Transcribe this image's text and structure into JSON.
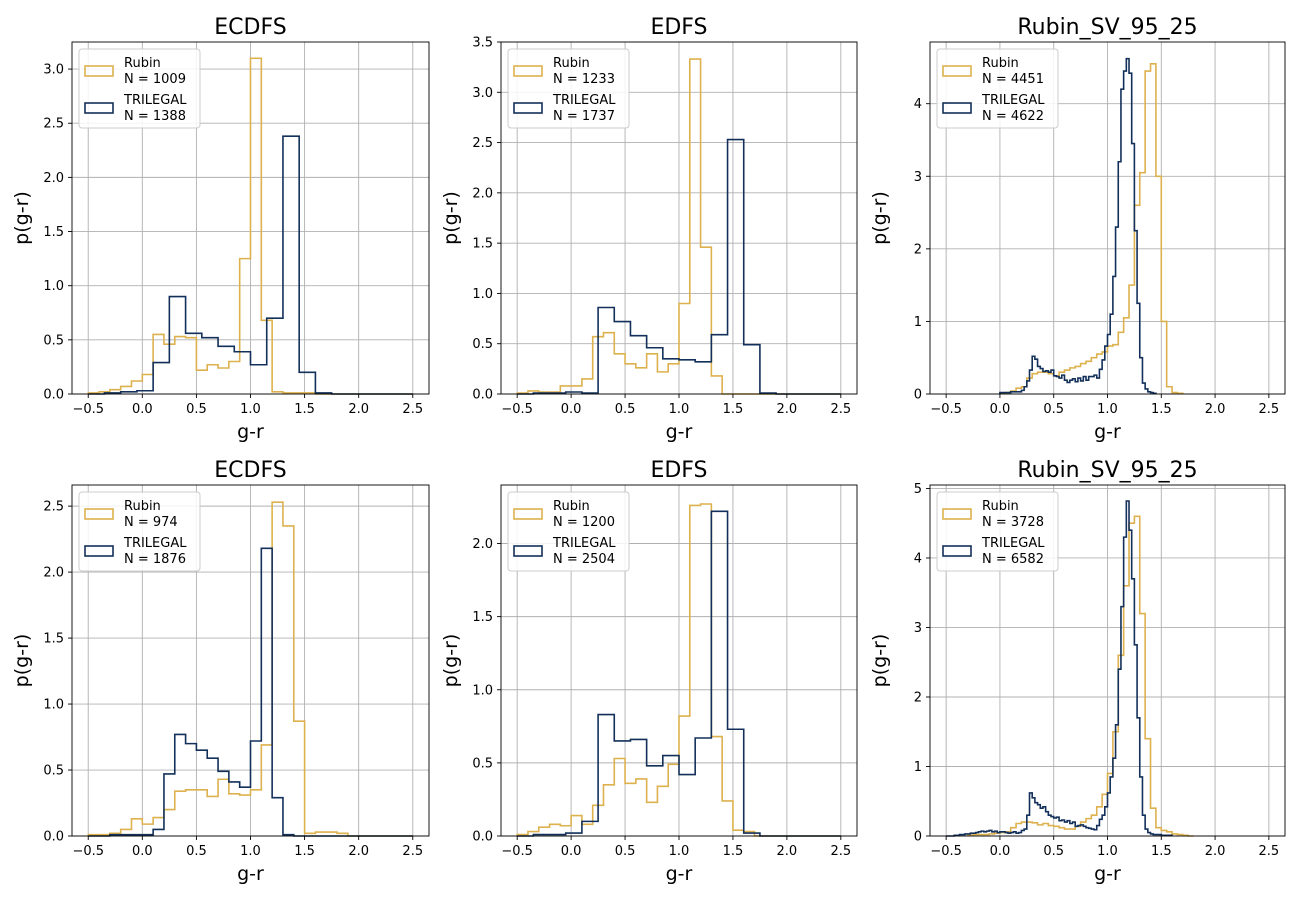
{
  "colors": {
    "rubin": "#DDB14E",
    "trilegal": "#13305A",
    "grid": "#b0b0b0",
    "axis": "#000000"
  },
  "chart_data": [
    {
      "type": "histogram-step",
      "title": "ECDFS",
      "xlabel": "g-r",
      "ylabel": "p(g-r)",
      "xlim": [
        -0.65,
        2.65
      ],
      "ylim": [
        0,
        3.25
      ],
      "xticks": [
        -0.5,
        0.0,
        0.5,
        1.0,
        1.5,
        2.0,
        2.5
      ],
      "xtick_labels": [
        "−0.5",
        "0.0",
        "0.5",
        "1.0",
        "1.5",
        "2.0",
        "2.5"
      ],
      "yticks": [
        0,
        0.5,
        1.0,
        1.5,
        2.0,
        2.5,
        3.0
      ],
      "ytick_labels": [
        "0.0",
        "0.5",
        "1.0",
        "1.5",
        "2.0",
        "2.5",
        "3.0"
      ],
      "legend": [
        {
          "name": "Rubin",
          "n_label": "N = 1009"
        },
        {
          "name": "TRILEGAL",
          "n_label": "N = 1388"
        }
      ],
      "series": [
        {
          "name": "Rubin",
          "edges_start": -0.5,
          "bin_width": 0.1,
          "values": [
            0.01,
            0.02,
            0.04,
            0.07,
            0.12,
            0.18,
            0.55,
            0.46,
            0.53,
            0.52,
            0.22,
            0.27,
            0.24,
            0.3,
            1.25,
            3.1,
            0.68,
            0.02,
            0.01,
            0.01,
            0.01,
            0,
            0,
            0,
            0,
            0,
            0,
            0,
            0,
            0
          ]
        },
        {
          "name": "TRILEGAL",
          "edges_start": -0.5,
          "bin_width": 0.15,
          "values": [
            0.0,
            0.01,
            0.02,
            0.03,
            0.29,
            0.9,
            0.56,
            0.52,
            0.44,
            0.39,
            0.27,
            0.7,
            2.38,
            0.2,
            0.01,
            0.0,
            0.0,
            0.0,
            0.0,
            0.0
          ]
        }
      ]
    },
    {
      "type": "histogram-step",
      "title": "EDFS",
      "xlabel": "g-r",
      "ylabel": "p(g-r)",
      "xlim": [
        -0.65,
        2.65
      ],
      "ylim": [
        0,
        3.5
      ],
      "xticks": [
        -0.5,
        0.0,
        0.5,
        1.0,
        1.5,
        2.0,
        2.5
      ],
      "xtick_labels": [
        "−0.5",
        "0.0",
        "0.5",
        "1.0",
        "1.5",
        "2.0",
        "2.5"
      ],
      "yticks": [
        0,
        0.5,
        1.0,
        1.5,
        2.0,
        2.5,
        3.0,
        3.5
      ],
      "ytick_labels": [
        "0.0",
        "0.5",
        "1.0",
        "1.5",
        "2.0",
        "2.5",
        "3.0",
        "3.5"
      ],
      "legend": [
        {
          "name": "Rubin",
          "n_label": "N = 1233"
        },
        {
          "name": "TRILEGAL",
          "n_label": "N = 1737"
        }
      ],
      "series": [
        {
          "name": "Rubin",
          "edges_start": -0.5,
          "bin_width": 0.1,
          "values": [
            0.01,
            0.03,
            0.02,
            0.02,
            0.08,
            0.08,
            0.15,
            0.57,
            0.61,
            0.4,
            0.3,
            0.26,
            0.4,
            0.22,
            0.3,
            0.9,
            3.33,
            1.46,
            0.18,
            0.0,
            0,
            0,
            0,
            0,
            0,
            0,
            0,
            0,
            0,
            0
          ]
        },
        {
          "name": "TRILEGAL",
          "edges_start": -0.5,
          "bin_width": 0.15,
          "values": [
            0.0,
            0.01,
            0.01,
            0.02,
            0.01,
            0.86,
            0.72,
            0.58,
            0.46,
            0.35,
            0.34,
            0.32,
            0.59,
            2.53,
            0.49,
            0.01,
            0.0,
            0.0,
            0.0,
            0.0
          ]
        }
      ]
    },
    {
      "type": "histogram-step",
      "title": "Rubin_SV_95_25",
      "xlabel": "g-r",
      "ylabel": "p(g-r)",
      "xlim": [
        -0.65,
        2.65
      ],
      "ylim": [
        0,
        4.85
      ],
      "xticks": [
        -0.5,
        0.0,
        0.5,
        1.0,
        1.5,
        2.0,
        2.5
      ],
      "xtick_labels": [
        "−0.5",
        "0.0",
        "0.5",
        "1.0",
        "1.5",
        "2.0",
        "2.5"
      ],
      "yticks": [
        0,
        1,
        2,
        3,
        4
      ],
      "ytick_labels": [
        "0",
        "1",
        "2",
        "3",
        "4"
      ],
      "legend": [
        {
          "name": "Rubin",
          "n_label": "N = 4451"
        },
        {
          "name": "TRILEGAL",
          "n_label": "N = 4622"
        }
      ],
      "series": [
        {
          "name": "Rubin",
          "edges_start": 0.0,
          "bin_width": 0.05,
          "values": [
            0.01,
            0.02,
            0.04,
            0.08,
            0.1,
            0.22,
            0.28,
            0.3,
            0.3,
            0.28,
            0.25,
            0.3,
            0.33,
            0.36,
            0.38,
            0.42,
            0.45,
            0.5,
            0.55,
            0.58,
            0.66,
            0.68,
            0.85,
            1.05,
            1.5,
            2.6,
            3.05,
            4.45,
            4.55,
            3.0,
            1.0,
            0.1,
            0.02,
            0.01
          ]
        },
        {
          "name": "TRILEGAL",
          "edges_start": 0.0,
          "bin_width": 0.025,
          "values": [
            0.02,
            0.02,
            0.02,
            0.02,
            0.03,
            0.03,
            0.03,
            0.03,
            0.05,
            0.1,
            0.18,
            0.33,
            0.52,
            0.48,
            0.38,
            0.35,
            0.31,
            0.32,
            0.3,
            0.33,
            0.25,
            0.24,
            0.22,
            0.26,
            0.19,
            0.16,
            0.19,
            0.21,
            0.17,
            0.22,
            0.18,
            0.24,
            0.19,
            0.24,
            0.24,
            0.26,
            0.22,
            0.34,
            0.47,
            0.66,
            0.82,
            1.1,
            1.62,
            2.3,
            3.2,
            4.2,
            4.45,
            4.62,
            4.42,
            3.45,
            2.25,
            1.25,
            0.5,
            0.15,
            0.07,
            0.03,
            0.02,
            0.01
          ]
        }
      ]
    },
    {
      "type": "histogram-step",
      "title": "ECDFS",
      "xlabel": "g-r",
      "ylabel": "p(g-r)",
      "xlim": [
        -0.65,
        2.65
      ],
      "ylim": [
        0,
        2.66
      ],
      "xticks": [
        -0.5,
        0.0,
        0.5,
        1.0,
        1.5,
        2.0,
        2.5
      ],
      "xtick_labels": [
        "−0.5",
        "0.0",
        "0.5",
        "1.0",
        "1.5",
        "2.0",
        "2.5"
      ],
      "yticks": [
        0,
        0.5,
        1.0,
        1.5,
        2.0,
        2.5
      ],
      "ytick_labels": [
        "0.0",
        "0.5",
        "1.0",
        "1.5",
        "2.0",
        "2.5"
      ],
      "legend": [
        {
          "name": "Rubin",
          "n_label": "N = 974"
        },
        {
          "name": "TRILEGAL",
          "n_label": "N = 1876"
        }
      ],
      "series": [
        {
          "name": "Rubin",
          "edges_start": -0.5,
          "bin_width": 0.1,
          "values": [
            0.01,
            0.01,
            0.02,
            0.05,
            0.13,
            0.09,
            0.14,
            0.2,
            0.34,
            0.35,
            0.35,
            0.3,
            0.43,
            0.32,
            0.31,
            0.35,
            0.69,
            2.53,
            2.35,
            0.87,
            0.02,
            0.03,
            0.03,
            0.02,
            0,
            0,
            0,
            0,
            0,
            0
          ]
        },
        {
          "name": "TRILEGAL",
          "edges_start": -0.5,
          "bin_width": 0.1,
          "values": [
            0.0,
            0.0,
            0.01,
            0.01,
            0.01,
            0.01,
            0.05,
            0.47,
            0.77,
            0.7,
            0.65,
            0.59,
            0.49,
            0.41,
            0.37,
            0.72,
            2.18,
            0.29,
            0.01,
            0.0,
            0,
            0,
            0,
            0,
            0,
            0,
            0,
            0,
            0,
            0
          ]
        }
      ]
    },
    {
      "type": "histogram-step",
      "title": "EDFS",
      "xlabel": "g-r",
      "ylabel": "p(g-r)",
      "xlim": [
        -0.65,
        2.65
      ],
      "ylim": [
        0,
        2.4
      ],
      "xticks": [
        -0.5,
        0.0,
        0.5,
        1.0,
        1.5,
        2.0,
        2.5
      ],
      "xtick_labels": [
        "−0.5",
        "0.0",
        "0.5",
        "1.0",
        "1.5",
        "2.0",
        "2.5"
      ],
      "yticks": [
        0,
        0.5,
        1.0,
        1.5,
        2.0
      ],
      "ytick_labels": [
        "0.0",
        "0.5",
        "1.0",
        "1.5",
        "2.0"
      ],
      "legend": [
        {
          "name": "Rubin",
          "n_label": "N = 1200"
        },
        {
          "name": "TRILEGAL",
          "n_label": "N = 2504"
        }
      ],
      "series": [
        {
          "name": "Rubin",
          "edges_start": -0.5,
          "bin_width": 0.1,
          "values": [
            0.01,
            0.03,
            0.06,
            0.08,
            0.07,
            0.14,
            0.08,
            0.21,
            0.35,
            0.53,
            0.36,
            0.39,
            0.23,
            0.34,
            0.49,
            0.82,
            2.26,
            2.27,
            0.68,
            0.24,
            0.04,
            0.03,
            0.0,
            0.0,
            0,
            0,
            0,
            0,
            0,
            0
          ]
        },
        {
          "name": "TRILEGAL",
          "edges_start": -0.5,
          "bin_width": 0.15,
          "values": [
            0.0,
            0.01,
            0.01,
            0.02,
            0.1,
            0.83,
            0.65,
            0.66,
            0.48,
            0.55,
            0.42,
            0.67,
            2.22,
            0.73,
            0.02,
            0.0,
            0.0,
            0.0,
            0.0,
            0.0
          ]
        }
      ]
    },
    {
      "type": "histogram-step",
      "title": "Rubin_SV_95_25",
      "xlabel": "g-r",
      "ylabel": "p(g-r)",
      "xlim": [
        -0.65,
        2.65
      ],
      "ylim": [
        0,
        5.05
      ],
      "xticks": [
        -0.5,
        0.0,
        0.5,
        1.0,
        1.5,
        2.0,
        2.5
      ],
      "xtick_labels": [
        "−0.5",
        "0.0",
        "0.5",
        "1.0",
        "1.5",
        "2.0",
        "2.5"
      ],
      "yticks": [
        0,
        1,
        2,
        3,
        4,
        5
      ],
      "ytick_labels": [
        "0",
        "1",
        "2",
        "3",
        "4",
        "5"
      ],
      "legend": [
        {
          "name": "Rubin",
          "n_label": "N = 3728"
        },
        {
          "name": "TRILEGAL",
          "n_label": "N = 6582"
        }
      ],
      "series": [
        {
          "name": "Rubin",
          "edges_start": -0.3,
          "bin_width": 0.05,
          "values": [
            0.01,
            0.02,
            0.02,
            0.02,
            0.03,
            0.04,
            0.05,
            0.06,
            0.12,
            0.18,
            0.2,
            0.2,
            0.19,
            0.16,
            0.18,
            0.15,
            0.14,
            0.12,
            0.1,
            0.1,
            0.14,
            0.2,
            0.25,
            0.3,
            0.42,
            0.6,
            0.9,
            1.5,
            2.6,
            3.6,
            4.5,
            4.6,
            3.2,
            1.4,
            0.4,
            0.12,
            0.08,
            0.06,
            0.03,
            0.02,
            0.01,
            0.0
          ]
        },
        {
          "name": "TRILEGAL",
          "edges_start": -0.5,
          "bin_width": 0.025,
          "values": [
            0.0,
            0.0,
            0.0,
            0.01,
            0.01,
            0.02,
            0.02,
            0.03,
            0.03,
            0.04,
            0.04,
            0.05,
            0.06,
            0.07,
            0.06,
            0.07,
            0.08,
            0.06,
            0.07,
            0.05,
            0.06,
            0.06,
            0.05,
            0.04,
            0.05,
            0.06,
            0.04,
            0.05,
            0.08,
            0.1,
            0.3,
            0.62,
            0.55,
            0.48,
            0.45,
            0.4,
            0.42,
            0.35,
            0.3,
            0.28,
            0.26,
            0.27,
            0.22,
            0.23,
            0.2,
            0.22,
            0.18,
            0.2,
            0.14,
            0.15,
            0.16,
            0.14,
            0.12,
            0.11,
            0.1,
            0.09,
            0.15,
            0.24,
            0.3,
            0.42,
            0.62,
            0.85,
            1.12,
            1.6,
            2.4,
            3.3,
            4.3,
            4.82,
            4.4,
            3.7,
            2.75,
            1.7,
            0.85,
            0.3,
            0.1,
            0.05,
            0.03,
            0.02,
            0.02,
            0.02,
            0.01,
            0.01,
            0.01,
            0.01
          ]
        }
      ]
    }
  ]
}
